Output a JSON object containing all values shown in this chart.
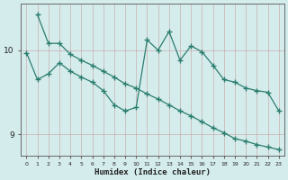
{
  "xlabel": "Humidex (Indice chaleur)",
  "line_color": "#2a7d6e",
  "background_color": "#d5ecec",
  "grid_color": "#b8d8d8",
  "xlim": [
    -0.5,
    23.5
  ],
  "ylim": [
    8.75,
    10.55
  ],
  "yticks": [
    9,
    10
  ],
  "xticks": [
    0,
    1,
    2,
    3,
    4,
    5,
    6,
    7,
    8,
    9,
    10,
    11,
    12,
    13,
    14,
    15,
    16,
    17,
    18,
    19,
    20,
    21,
    22,
    23
  ],
  "line1_x": [
    1,
    2,
    3,
    4,
    5,
    6,
    7,
    8,
    9,
    10,
    11,
    12,
    13,
    14,
    15,
    16,
    17,
    18,
    19,
    20,
    21,
    22,
    23
  ],
  "line1_y": [
    10.42,
    10.08,
    10.08,
    9.95,
    9.88,
    9.82,
    9.75,
    9.68,
    9.6,
    9.55,
    9.48,
    9.42,
    9.35,
    9.28,
    9.22,
    9.15,
    9.08,
    9.02,
    8.95,
    8.92,
    8.88,
    8.85,
    8.82
  ],
  "line2_x": [
    0,
    1,
    2,
    3,
    4,
    5,
    6,
    7,
    8,
    9,
    10,
    11,
    12,
    13,
    14,
    15,
    16,
    17,
    18,
    19,
    20,
    21,
    22,
    23
  ],
  "line2_y": [
    9.97,
    9.65,
    9.72,
    9.85,
    9.75,
    9.68,
    9.62,
    9.52,
    9.35,
    9.28,
    9.32,
    10.12,
    10.0,
    10.22,
    9.88,
    10.05,
    9.98,
    9.82,
    9.65,
    9.62,
    9.55,
    9.52,
    9.5,
    9.28
  ]
}
